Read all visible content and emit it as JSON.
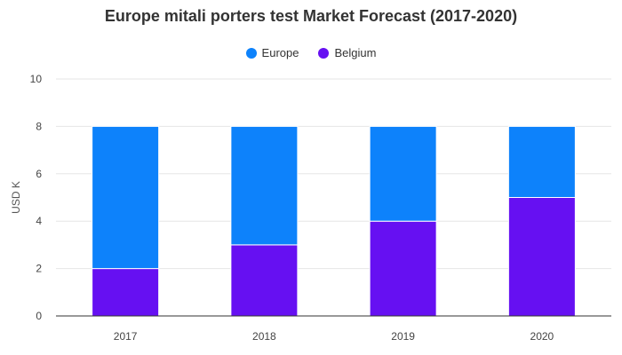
{
  "chart_data": {
    "type": "bar",
    "stacked": true,
    "title": "Europe mitali porters test Market Forecast (2017-2020)",
    "xlabel": "",
    "ylabel": "USD K",
    "ylim": [
      0,
      10
    ],
    "yticks": [
      0,
      2,
      4,
      6,
      8,
      10
    ],
    "grid": true,
    "legend_position": "top-center",
    "categories": [
      "2017",
      "2018",
      "2019",
      "2020"
    ],
    "series": [
      {
        "name": "Belgium",
        "color": "#6610f2",
        "values": [
          2,
          3,
          4,
          5
        ]
      },
      {
        "name": "Europe",
        "color": "#0d82fb",
        "values": [
          6,
          5,
          4,
          3
        ]
      }
    ],
    "legend_order": [
      "Europe",
      "Belgium"
    ]
  }
}
